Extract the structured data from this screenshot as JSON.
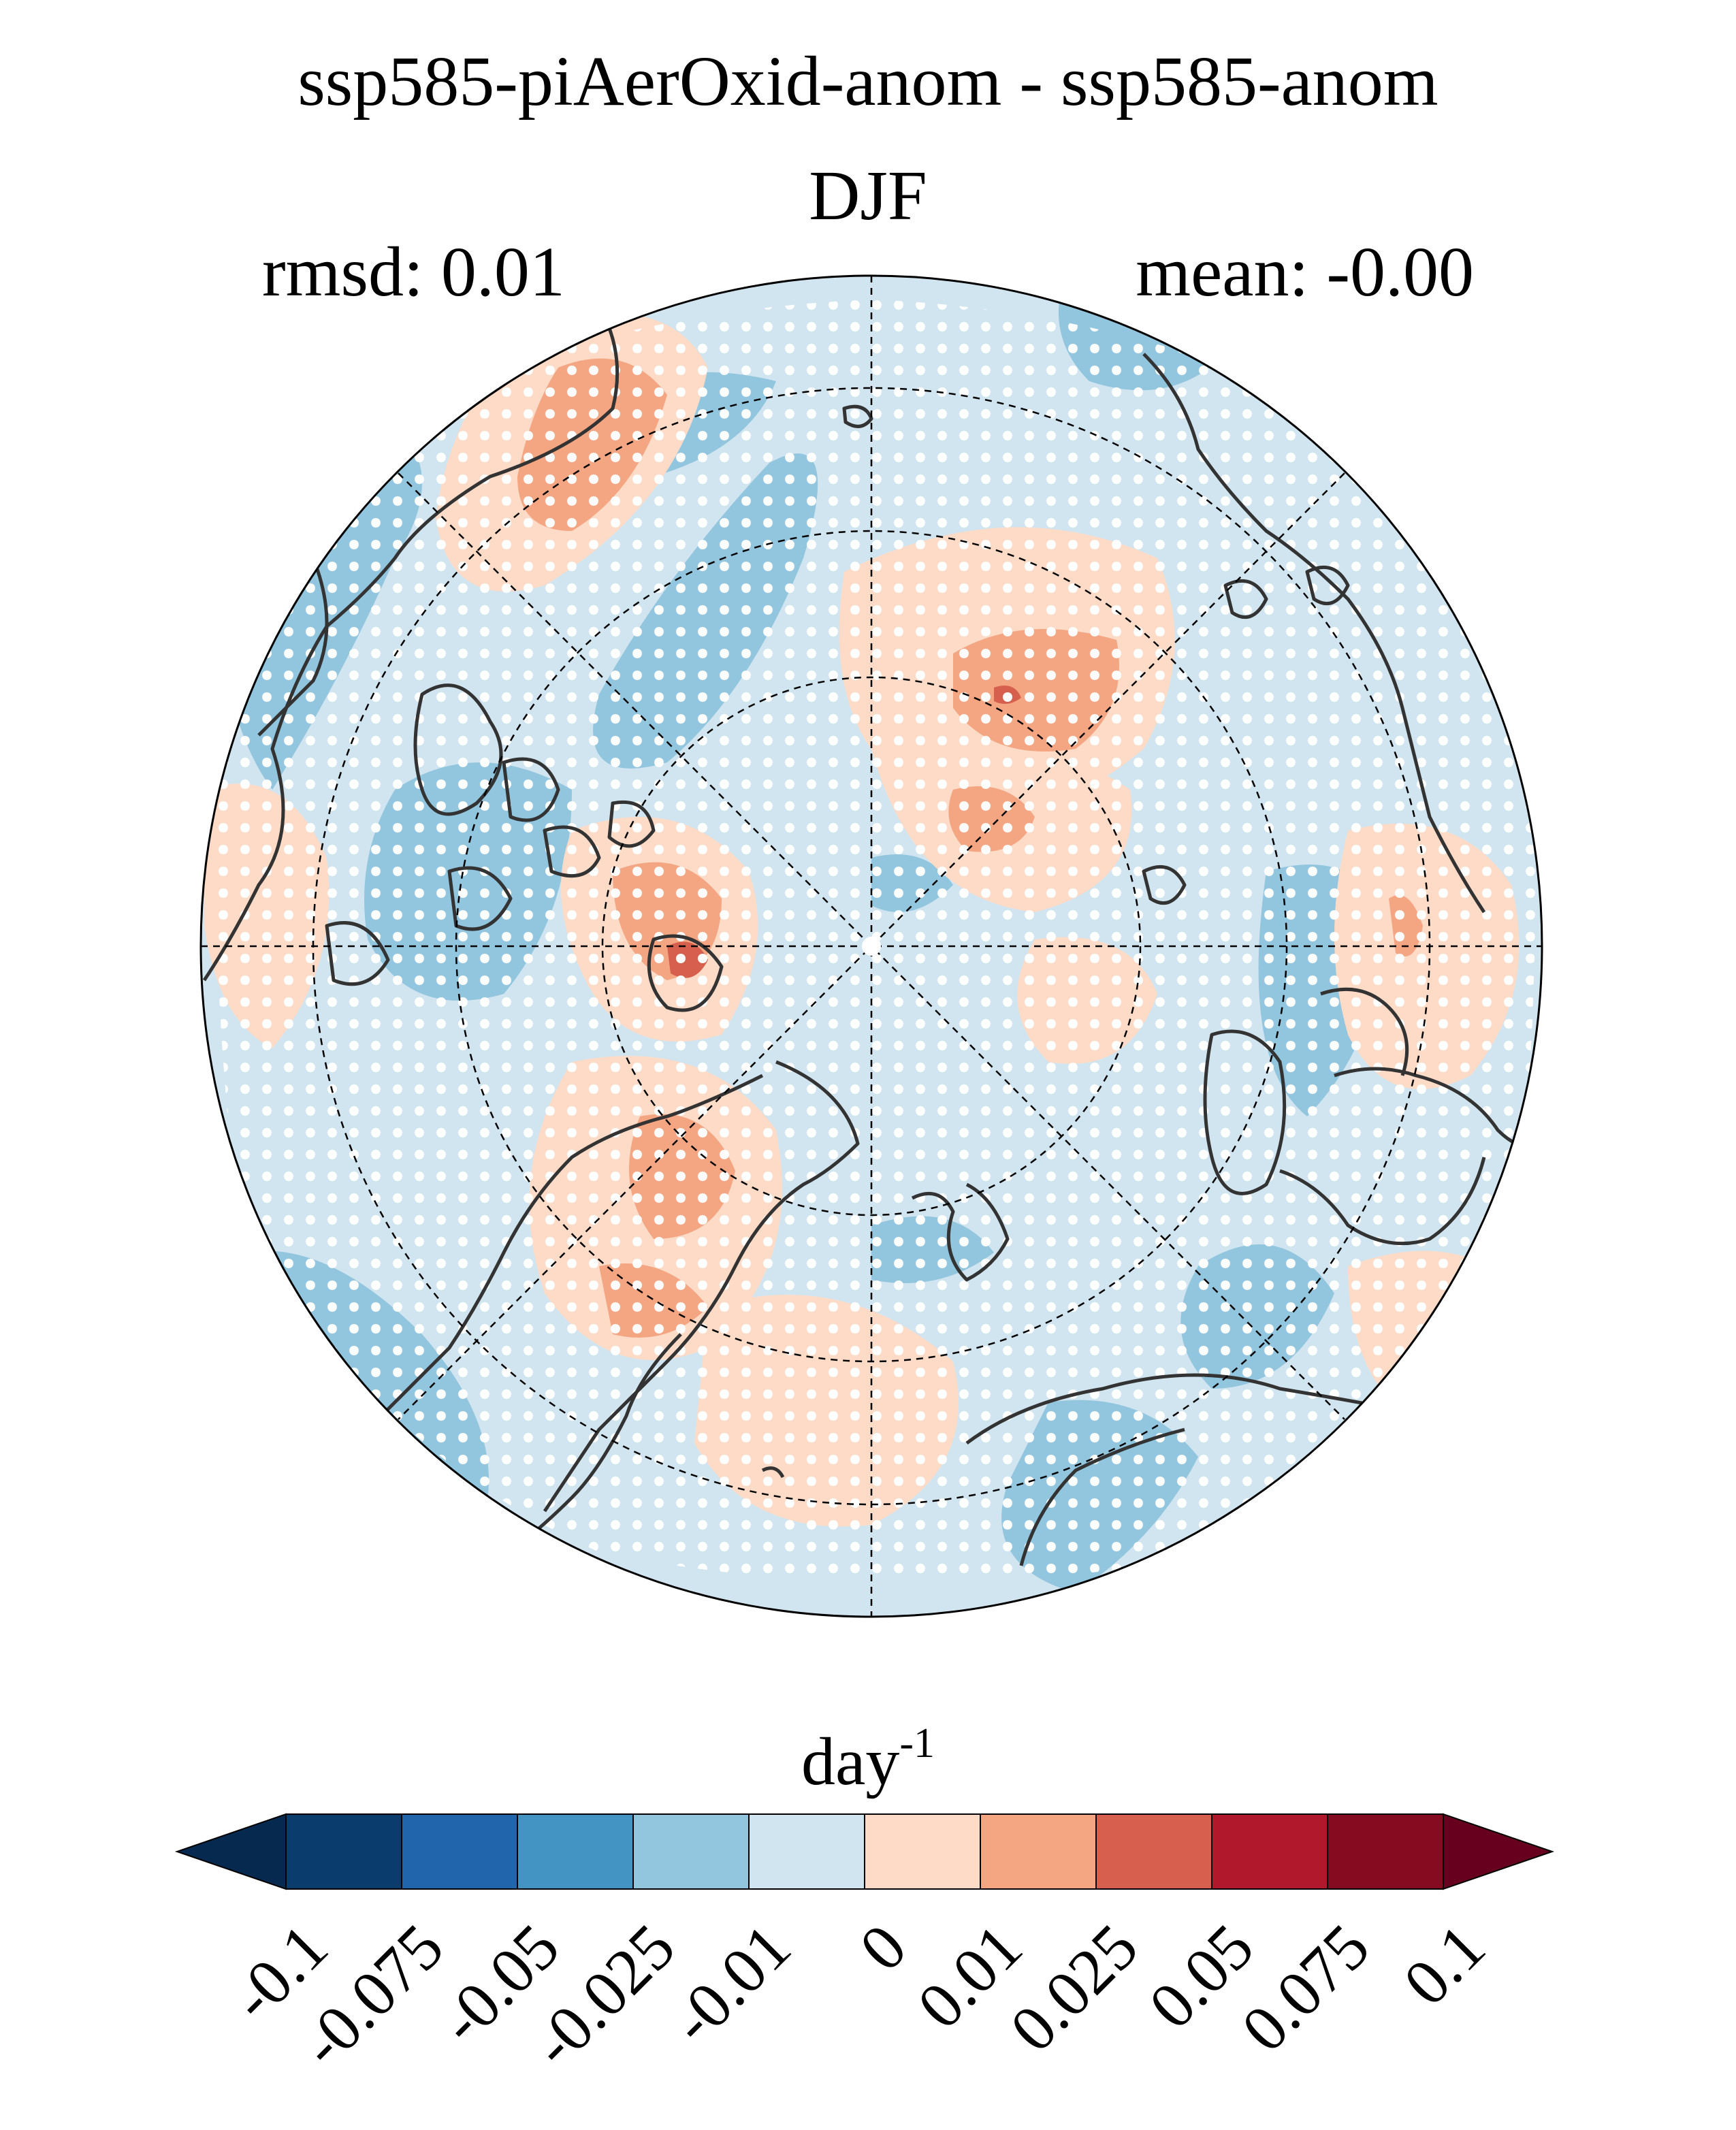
{
  "title": "ssp585-piAerOxid-anom - ssp585-anom",
  "season": "DJF",
  "rmsd_label": "rmsd: 0.01",
  "mean_label": "mean: -0.00",
  "units": {
    "base": "day",
    "exp": "-1"
  },
  "colorbar": {
    "ticks": [
      "-0.1",
      "-0.075",
      "-0.05",
      "-0.025",
      "-0.01",
      "0",
      "0.01",
      "0.025",
      "0.05",
      "0.075",
      "0.1"
    ],
    "colors": [
      "#062a4f",
      "#0a3d6e",
      "#2166ac",
      "#4393c3",
      "#92c5de",
      "#d1e5f0",
      "#fddbc7",
      "#f4a582",
      "#d6604d",
      "#b2182b",
      "#870b20",
      "#67001f"
    ]
  },
  "map": {
    "projection": "north polar stereographic",
    "background_color": "#d1e5f0",
    "coast_color": "#333333",
    "stipple_color": "#ffffff"
  }
}
